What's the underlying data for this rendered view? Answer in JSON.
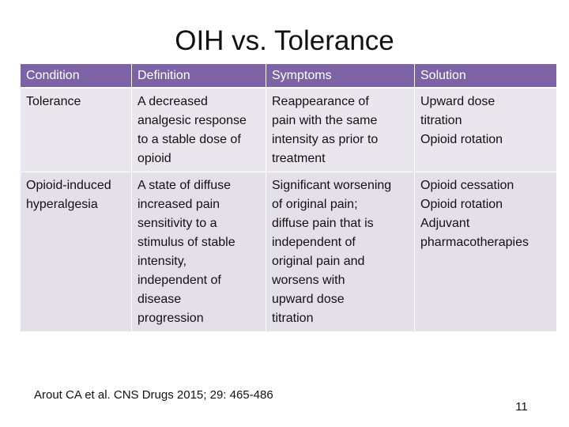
{
  "slide": {
    "title": "OIH vs. Tolerance",
    "citation": "Arout CA et al. CNS Drugs 2015; 29: 465-486",
    "page_number": "11"
  },
  "colors": {
    "header_bg": "#7d63a5",
    "cell_bg": "#e9e6ee"
  },
  "table": {
    "headers": [
      "Condition",
      "Definition",
      "Symptoms",
      "Solution"
    ],
    "rows": [
      {
        "condition": [
          "Tolerance"
        ],
        "definition": [
          "A decreased",
          "analgesic response",
          "to a stable dose of",
          "opioid"
        ],
        "symptoms": [
          "Reappearance of",
          "pain with the same",
          "intensity as prior to",
          "treatment"
        ],
        "solution": [
          "Upward dose",
          "titration",
          "Opioid rotation"
        ]
      },
      {
        "condition": [
          "Opioid-induced",
          "hyperalgesia"
        ],
        "definition": [
          "A state of diffuse",
          "increased pain",
          "sensitivity to a",
          "stimulus of stable",
          "intensity,",
          "independent of",
          "disease",
          "progression"
        ],
        "symptoms": [
          "Significant worsening",
          "of original pain;",
          "diffuse pain that is",
          "independent of",
          "original pain and",
          "worsens with",
          "upward dose",
          "titration"
        ],
        "solution": [
          "Opioid cessation",
          "Opioid rotation",
          "Adjuvant",
          "pharmacotherapies"
        ]
      }
    ]
  }
}
